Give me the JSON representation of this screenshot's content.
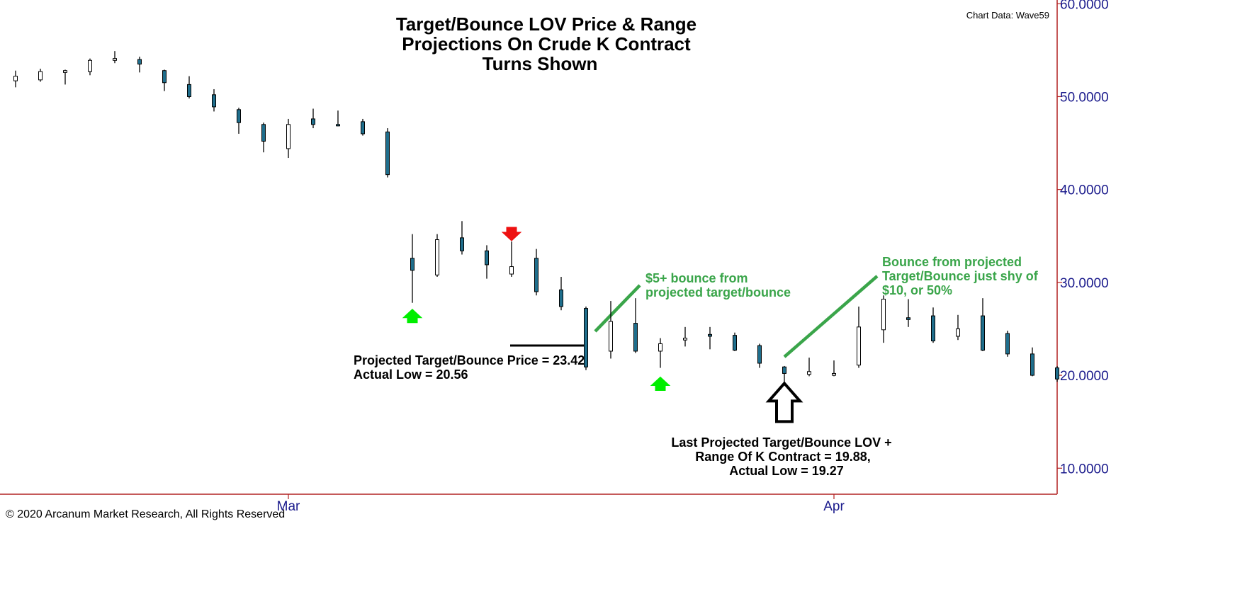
{
  "chart_data": {
    "type": "candlestick",
    "title_lines": [
      "Target/Bounce LOV Price & Range",
      "Projections On Crude K Contract",
      "Turns Shown"
    ],
    "source_label": "Chart Data: Wave59",
    "copyright": "© 2020 Arcanum Market Research, All Rights Reserved",
    "y_ticks": [
      "10.0000",
      "20.0000",
      "30.0000",
      "40.0000",
      "50.0000",
      "60.0000"
    ],
    "y_tick_values": [
      10,
      20,
      30,
      40,
      50,
      60
    ],
    "ylim": [
      7.2,
      60.4
    ],
    "x_labels": [
      {
        "label": "Mar",
        "index": 11
      },
      {
        "label": "Apr",
        "index": 33
      }
    ],
    "candles": [
      {
        "o": 51.7,
        "h": 52.8,
        "l": 51.0,
        "c": 52.2
      },
      {
        "o": 51.8,
        "h": 53.0,
        "l": 51.6,
        "c": 52.7
      },
      {
        "o": 52.6,
        "h": 52.9,
        "l": 51.3,
        "c": 52.8
      },
      {
        "o": 52.7,
        "h": 54.1,
        "l": 52.3,
        "c": 53.9
      },
      {
        "o": 53.9,
        "h": 54.9,
        "l": 53.6,
        "c": 54.1
      },
      {
        "o": 54.0,
        "h": 54.3,
        "l": 52.6,
        "c": 53.5
      },
      {
        "o": 52.8,
        "h": 52.9,
        "l": 50.6,
        "c": 51.5
      },
      {
        "o": 51.3,
        "h": 52.2,
        "l": 49.8,
        "c": 50.0
      },
      {
        "o": 50.2,
        "h": 50.8,
        "l": 48.4,
        "c": 48.9
      },
      {
        "o": 48.6,
        "h": 48.8,
        "l": 46.0,
        "c": 47.2
      },
      {
        "o": 47.0,
        "h": 47.2,
        "l": 44.0,
        "c": 45.2
      },
      {
        "o": 44.4,
        "h": 47.6,
        "l": 43.4,
        "c": 47.0
      },
      {
        "o": 47.6,
        "h": 48.7,
        "l": 46.6,
        "c": 47.0
      },
      {
        "o": 47.0,
        "h": 48.5,
        "l": 46.8,
        "c": 46.9
      },
      {
        "o": 47.3,
        "h": 47.6,
        "l": 45.8,
        "c": 46.0
      },
      {
        "o": 46.2,
        "h": 46.6,
        "l": 41.3,
        "c": 41.6
      },
      {
        "o": 32.6,
        "h": 35.2,
        "l": 27.8,
        "c": 31.3
      },
      {
        "o": 30.8,
        "h": 35.2,
        "l": 30.6,
        "c": 34.6
      },
      {
        "o": 34.8,
        "h": 36.6,
        "l": 33.0,
        "c": 33.4
      },
      {
        "o": 33.4,
        "h": 34.0,
        "l": 30.4,
        "c": 31.9
      },
      {
        "o": 30.9,
        "h": 34.4,
        "l": 30.6,
        "c": 31.7
      },
      {
        "o": 32.6,
        "h": 33.6,
        "l": 28.6,
        "c": 29.0
      },
      {
        "o": 29.2,
        "h": 30.6,
        "l": 27.0,
        "c": 27.4
      },
      {
        "o": 27.2,
        "h": 27.4,
        "l": 20.56,
        "c": 20.9
      },
      {
        "o": 22.6,
        "h": 28.0,
        "l": 21.8,
        "c": 25.8
      },
      {
        "o": 25.6,
        "h": 28.3,
        "l": 22.4,
        "c": 22.6
      },
      {
        "o": 22.6,
        "h": 24.0,
        "l": 20.8,
        "c": 23.4
      },
      {
        "o": 23.8,
        "h": 25.2,
        "l": 23.1,
        "c": 24.0
      },
      {
        "o": 24.4,
        "h": 25.2,
        "l": 22.8,
        "c": 24.2
      },
      {
        "o": 24.3,
        "h": 24.6,
        "l": 22.6,
        "c": 22.7
      },
      {
        "o": 23.2,
        "h": 23.4,
        "l": 20.8,
        "c": 21.3
      },
      {
        "o": 20.9,
        "h": 21.0,
        "l": 19.27,
        "c": 20.2
      },
      {
        "o": 20.1,
        "h": 21.9,
        "l": 19.9,
        "c": 20.4
      },
      {
        "o": 20.0,
        "h": 21.6,
        "l": 19.9,
        "c": 20.2
      },
      {
        "o": 21.1,
        "h": 27.4,
        "l": 20.8,
        "c": 25.2
      },
      {
        "o": 24.9,
        "h": 28.6,
        "l": 23.5,
        "c": 28.2
      },
      {
        "o": 26.2,
        "h": 28.2,
        "l": 25.2,
        "c": 26.0
      },
      {
        "o": 26.4,
        "h": 27.3,
        "l": 23.5,
        "c": 23.7
      },
      {
        "o": 24.2,
        "h": 26.5,
        "l": 23.8,
        "c": 25.0
      },
      {
        "o": 26.4,
        "h": 28.3,
        "l": 22.6,
        "c": 22.7
      },
      {
        "o": 24.5,
        "h": 24.8,
        "l": 22.0,
        "c": 22.3
      },
      {
        "o": 22.3,
        "h": 23.0,
        "l": 19.9,
        "c": 20.0
      },
      {
        "o": 20.8,
        "h": 21.0,
        "l": 19.3,
        "c": 19.6
      }
    ],
    "markers": [
      {
        "type": "arrow-up-green",
        "index": 16,
        "price": 26.2
      },
      {
        "type": "arrow-down-red",
        "index": 20,
        "price": 35.4
      },
      {
        "type": "arrow-up-green",
        "index": 26,
        "price": 18.9
      },
      {
        "type": "arrow-up-outline",
        "index": 31,
        "price": 17.0
      }
    ],
    "annotations": [
      {
        "name": "projected-target-note",
        "lines": [
          "Projected Target/Bounce Price = 23.42,",
          "Actual Low = 20.56"
        ],
        "color": "black",
        "align": "start"
      },
      {
        "name": "last-projected-note",
        "lines": [
          "Last Projected Target/Bounce LOV +",
          "Range Of K Contract = 19.88,",
          "Actual Low = 19.27"
        ],
        "color": "black",
        "align": "middle"
      },
      {
        "name": "bounce-5-note",
        "lines": [
          "$5+ bounce from",
          "projected target/bounce"
        ],
        "color": "green",
        "align": "start"
      },
      {
        "name": "bounce-10-note",
        "lines": [
          "Bounce from projected",
          "Target/Bounce just shy of",
          "$10, or 50%"
        ],
        "color": "green",
        "align": "start"
      }
    ],
    "colors": {
      "bear_fill": "#1f6e8c",
      "bull_fill": "#ffffff",
      "candle_outline": "#000000",
      "up_arrow": "#00ee00",
      "down_arrow": "#ee1111",
      "axis": "#b22222",
      "tick_text": "#1a1a8c",
      "green_text": "#3aa54a"
    }
  }
}
